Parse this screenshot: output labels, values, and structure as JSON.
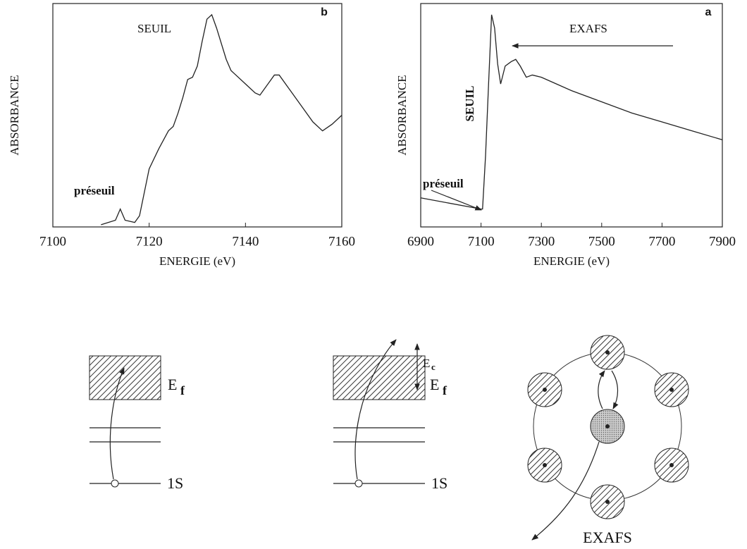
{
  "chart_data": [
    {
      "type": "line",
      "panel_label": "b",
      "xlabel": "ENERGIE (eV)",
      "ylabel": "ABSORBANCE",
      "annotations": [
        "SEUIL",
        "préseuil"
      ],
      "x": [
        7110,
        7113,
        7114,
        7115,
        7117,
        7118,
        7120,
        7122,
        7124,
        7125,
        7126,
        7127,
        7128,
        7129,
        7130,
        7131,
        7132,
        7133,
        7134,
        7136,
        7137,
        7138,
        7140,
        7142,
        7143,
        7145,
        7146,
        7147,
        7149,
        7152,
        7154,
        7156,
        7158,
        7160
      ],
      "series": [
        {
          "color": "#222222",
          "values": [
            0.01,
            0.03,
            0.08,
            0.03,
            0.02,
            0.05,
            0.26,
            0.35,
            0.43,
            0.45,
            0.51,
            0.58,
            0.66,
            0.67,
            0.72,
            0.83,
            0.93,
            0.95,
            0.89,
            0.75,
            0.7,
            0.68,
            0.64,
            0.6,
            0.59,
            0.65,
            0.68,
            0.68,
            0.62,
            0.53,
            0.47,
            0.43,
            0.46,
            0.5
          ]
        }
      ],
      "xlim": [
        7100,
        7160
      ],
      "xticks": [
        7100,
        7120,
        7140,
        7160
      ],
      "ylim": [
        0,
        1
      ]
    },
    {
      "type": "line",
      "panel_label": "a",
      "xlabel": "ENERGIE (eV)",
      "ylabel": "ABSORBANCE",
      "annotations": [
        "EXAFS",
        "SEUIL",
        "préseuil"
      ],
      "x": [
        6900,
        7100,
        7105,
        7115,
        7125,
        7135,
        7145,
        7155,
        7165,
        7180,
        7200,
        7215,
        7230,
        7250,
        7270,
        7300,
        7350,
        7400,
        7500,
        7600,
        7700,
        7800,
        7900
      ],
      "series": [
        {
          "color": "#222222",
          "values": [
            0.13,
            0.08,
            0.08,
            0.32,
            0.64,
            0.95,
            0.89,
            0.73,
            0.64,
            0.72,
            0.74,
            0.75,
            0.72,
            0.67,
            0.68,
            0.67,
            0.64,
            0.61,
            0.56,
            0.51,
            0.47,
            0.43,
            0.39
          ]
        }
      ],
      "xlim": [
        6900,
        7900
      ],
      "xticks": [
        6900,
        7100,
        7300,
        7500,
        7700,
        7900
      ],
      "ylim": [
        0,
        1
      ]
    }
  ],
  "diagrams": {
    "left": {
      "level": "E",
      "level_sub": "f",
      "core": "1S"
    },
    "middle": {
      "level": "E",
      "level_sub": "f",
      "core": "1S",
      "kinetic": "E",
      "kinetic_sub": "c"
    },
    "right": {
      "caption": "EXAFS"
    }
  }
}
